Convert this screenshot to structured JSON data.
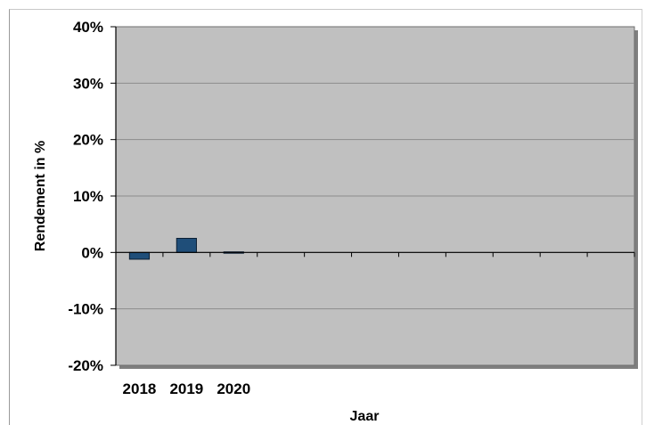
{
  "chart_data": {
    "type": "bar",
    "title": "",
    "xlabel": "Jaar",
    "ylabel": "Rendement in %",
    "ylim": [
      -20,
      40
    ],
    "y_ticks": [
      -20,
      -10,
      0,
      10,
      20,
      30,
      40
    ],
    "y_tick_labels": [
      "-20%",
      "-10%",
      "0%",
      "10%",
      "20%",
      "30%",
      "40%"
    ],
    "categories": [
      "2018",
      "2019",
      "2020",
      "",
      "",
      "",
      "",
      "",
      "",
      "",
      ""
    ],
    "values": [
      -1.2,
      2.5,
      0.1,
      null,
      null,
      null,
      null,
      null,
      null,
      null,
      null
    ],
    "grid": true,
    "legend": "none",
    "colors": {
      "bar": "#1f4e79",
      "plot_background": "#c0c0c0",
      "gridline": "#8c8c8c",
      "shadow": "#7f7f7f"
    }
  }
}
